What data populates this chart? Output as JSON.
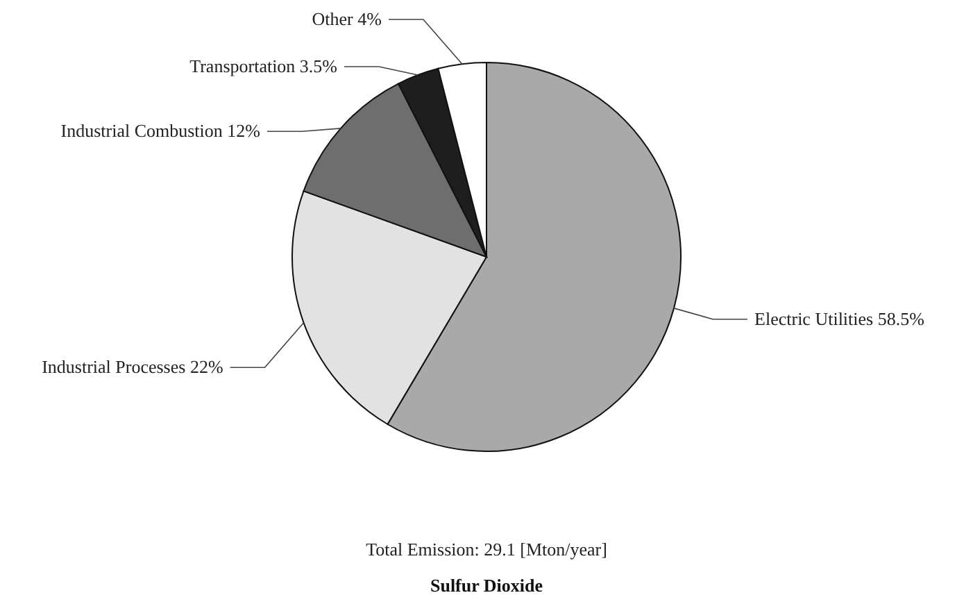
{
  "chart_data": {
    "type": "pie",
    "title": "Sulfur Dioxide",
    "annotations": [
      "Total Emission: 29.1 [Mton/year]"
    ],
    "categories": [
      "Electric Utilities",
      "Industrial Processes",
      "Industrial Combustion",
      "Transportation",
      "Other"
    ],
    "values": [
      58.5,
      22,
      12,
      3.5,
      4
    ],
    "value_labels": [
      "58.5%",
      "22%",
      "12%",
      "3.5%",
      "4%"
    ],
    "colors": [
      "#a9a9a9",
      "#e2e2e2",
      "#6e6e6e",
      "#1e1e1e",
      "#ffffff"
    ]
  }
}
